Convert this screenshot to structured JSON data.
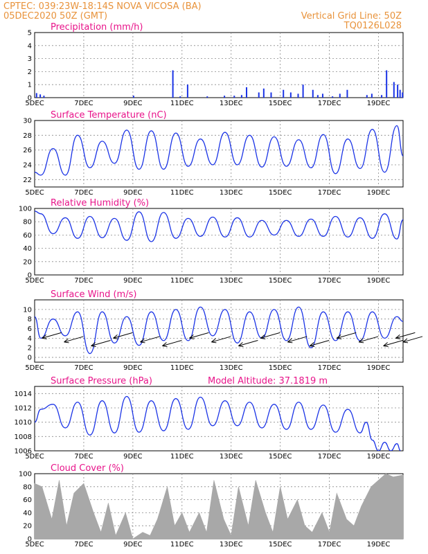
{
  "header": {
    "left_line1": "CPTEC:    039:23W-18:14S    NOVA VICOSA (BA)",
    "left_line2": "05DEC2020 50Z (GMT)",
    "right_line1": "Vertical Grid Line: 50Z",
    "right_line2": "TQ0126L028"
  },
  "x_axis": {
    "ticks": [
      "5DEC",
      "7DEC",
      "9DEC",
      "11DEC",
      "13DEC",
      "15DEC",
      "17DEC",
      "19DEC"
    ],
    "tick_days": [
      0,
      2,
      4,
      6,
      8,
      10,
      12,
      14
    ],
    "total_days": 15
  },
  "colors": {
    "header": "#e8923a",
    "title": "#e8148a",
    "line": "#1a33e6",
    "bars": "#1a33e6",
    "cloud": "#a8a8a8",
    "arrows": "#000000"
  },
  "chart_data": [
    {
      "type": "bar",
      "title": "Precipitation (mm/h)",
      "ylim": [
        0,
        5
      ],
      "yticks": [
        0,
        1,
        2,
        3,
        4,
        5
      ],
      "days": [
        0.05,
        0.2,
        0.35,
        4.0,
        5.6,
        5.9,
        6.2,
        7.0,
        7.7,
        8.1,
        8.4,
        8.6,
        9.1,
        9.3,
        9.6,
        10.1,
        10.4,
        10.7,
        10.9,
        11.3,
        11.5,
        11.7,
        12.1,
        12.4,
        12.7,
        13.5,
        13.7,
        14.1,
        14.3,
        14.6,
        14.75,
        14.85,
        14.95
      ],
      "values": [
        0.35,
        0.25,
        0.15,
        0.15,
        2.1,
        0.1,
        1.0,
        0.1,
        0.15,
        0.15,
        0.2,
        0.8,
        0.4,
        0.7,
        0.4,
        0.6,
        0.4,
        0.3,
        1.0,
        0.6,
        0.2,
        0.3,
        0.1,
        0.3,
        0.6,
        0.2,
        0.3,
        0.2,
        2.1,
        1.2,
        1.0,
        0.6,
        0.4
      ]
    },
    {
      "type": "line",
      "title": "Surface Temperature (nC)",
      "ylim": [
        21,
        30
      ],
      "yticks": [
        22,
        24,
        26,
        28,
        30
      ],
      "x": [
        0,
        0.25,
        0.75,
        1.25,
        1.75,
        2.25,
        2.75,
        3.25,
        3.75,
        4.25,
        4.75,
        5.25,
        5.75,
        6.25,
        6.75,
        7.25,
        7.75,
        8.25,
        8.75,
        9.25,
        9.75,
        10.25,
        10.75,
        11.25,
        11.75,
        12.25,
        12.75,
        13.25,
        13.75,
        14.25,
        14.75,
        15.0
      ],
      "y": [
        23.0,
        22.6,
        26.2,
        22.6,
        28.0,
        23.6,
        27.2,
        24.2,
        28.7,
        23.4,
        28.6,
        23.4,
        28.3,
        23.8,
        27.5,
        24.0,
        28.4,
        24.0,
        28.0,
        23.7,
        27.8,
        23.8,
        27.4,
        23.6,
        28.1,
        22.8,
        27.5,
        23.5,
        28.8,
        23.0,
        29.3,
        25.2
      ]
    },
    {
      "type": "line",
      "title": "Relative Humidity (%)",
      "ylim": [
        0,
        100
      ],
      "yticks": [
        0,
        20,
        40,
        60,
        80,
        100
      ],
      "x": [
        0,
        0.25,
        0.75,
        1.25,
        1.75,
        2.25,
        2.75,
        3.25,
        3.75,
        4.25,
        4.75,
        5.25,
        5.75,
        6.25,
        6.75,
        7.25,
        7.75,
        8.25,
        8.75,
        9.25,
        9.75,
        10.25,
        10.75,
        11.25,
        11.75,
        12.25,
        12.75,
        13.25,
        13.75,
        14.25,
        14.75,
        15.0
      ],
      "y": [
        96,
        92,
        62,
        86,
        55,
        88,
        56,
        85,
        52,
        95,
        50,
        94,
        55,
        85,
        58,
        87,
        57,
        86,
        57,
        82,
        60,
        82,
        58,
        84,
        58,
        88,
        57,
        86,
        55,
        92,
        54,
        83
      ]
    },
    {
      "type": "line",
      "title": "Surface Wind (m/s)",
      "ylim": [
        -1,
        12
      ],
      "yticks": [
        0,
        2,
        4,
        6,
        8,
        10
      ],
      "x": [
        0,
        0.25,
        0.75,
        1.25,
        1.75,
        2.25,
        2.75,
        3.25,
        3.75,
        4.25,
        4.75,
        5.25,
        5.75,
        6.25,
        6.75,
        7.25,
        7.75,
        8.25,
        8.75,
        9.25,
        9.75,
        10.25,
        10.75,
        11.25,
        11.75,
        12.25,
        12.75,
        13.25,
        13.75,
        14.25,
        14.75,
        15.0
      ],
      "y": [
        8.5,
        4.0,
        8.0,
        4.5,
        9.5,
        0.8,
        9.5,
        3.0,
        8.5,
        2.5,
        9.5,
        3.5,
        10.0,
        3.5,
        10.5,
        4.5,
        10.0,
        3.0,
        9.5,
        4.0,
        10.0,
        3.5,
        10.5,
        2.0,
        9.5,
        3.5,
        9.5,
        3.5,
        9.5,
        4.0,
        8.5,
        7.5
      ],
      "wind_arrows_days": [
        0.3,
        1.2,
        2.3,
        3.2,
        4.3,
        5.2,
        6.3,
        7.2,
        8.3,
        9.2,
        10.3,
        11.2,
        12.3,
        13.2,
        14.2,
        14.7,
        15.0
      ]
    },
    {
      "type": "line",
      "title": "Surface Pressure (hPa)",
      "annotation": "Model Altitude: 37.1819 m",
      "ylim": [
        1006,
        1015
      ],
      "yticks": [
        1006,
        1008,
        1010,
        1012,
        1014
      ],
      "x": [
        0,
        0.25,
        0.75,
        1.25,
        1.75,
        2.25,
        2.75,
        3.25,
        3.75,
        4.25,
        4.75,
        5.25,
        5.75,
        6.25,
        6.75,
        7.25,
        7.75,
        8.25,
        8.75,
        9.25,
        9.75,
        10.25,
        10.75,
        11.25,
        11.75,
        12.25,
        12.75,
        13.25,
        13.5,
        13.75,
        14.0,
        14.25,
        14.5,
        14.75,
        14.9
      ],
      "y": [
        1010.0,
        1011.8,
        1012.5,
        1009.2,
        1012.8,
        1008.2,
        1013.0,
        1008.5,
        1013.6,
        1008.6,
        1013.0,
        1008.8,
        1013.3,
        1009.0,
        1013.5,
        1009.5,
        1013.0,
        1009.5,
        1012.8,
        1009.2,
        1012.5,
        1009.0,
        1012.8,
        1009.0,
        1012.4,
        1008.6,
        1011.8,
        1008.5,
        1010.0,
        1007.5,
        1006.0,
        1007.2,
        1006.0,
        1007.0,
        1006.0
      ]
    },
    {
      "type": "area",
      "title": "Cloud Cover (%)",
      "ylim": [
        0,
        100
      ],
      "yticks": [
        0,
        20,
        40,
        60,
        80,
        100
      ],
      "x": [
        0,
        0.3,
        0.7,
        1.0,
        1.3,
        1.6,
        2.0,
        2.4,
        2.7,
        3.0,
        3.3,
        3.7,
        4.0,
        4.4,
        4.7,
        5.0,
        5.4,
        5.7,
        6.0,
        6.3,
        6.7,
        7.0,
        7.3,
        7.7,
        8.0,
        8.3,
        8.7,
        9.0,
        9.4,
        9.7,
        10.0,
        10.3,
        10.7,
        11.0,
        11.3,
        11.7,
        12.0,
        12.3,
        12.7,
        13.0,
        13.3,
        13.7,
        14.0,
        14.3,
        14.6,
        15.0
      ],
      "y": [
        85,
        80,
        30,
        90,
        20,
        70,
        85,
        40,
        10,
        55,
        5,
        40,
        0,
        10,
        5,
        30,
        80,
        20,
        40,
        10,
        40,
        10,
        90,
        30,
        5,
        80,
        20,
        90,
        40,
        10,
        80,
        30,
        60,
        20,
        10,
        40,
        10,
        70,
        30,
        20,
        50,
        80,
        90,
        100,
        95,
        98
      ]
    }
  ]
}
